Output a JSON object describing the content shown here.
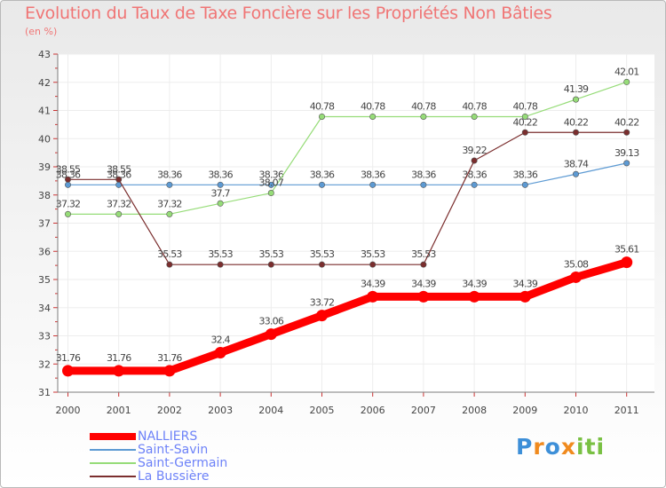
{
  "title": "Evolution du Taux de Taxe Foncière sur les Propriétés Non Bâties",
  "subtitle": "(en %)",
  "logo_text": "Proxiti",
  "colors": {
    "title": "#f07575",
    "legend_text": "#6d82f8",
    "axis": "#7c7c7c",
    "grid": "#ededed"
  },
  "chart_data": {
    "type": "line",
    "title": "Evolution du Taux de Taxe Foncière sur les Propriétés Non Bâties",
    "ylabel": "(en %)",
    "xlabel": "",
    "x": [
      "2000",
      "2001",
      "2002",
      "2003",
      "2004",
      "2005",
      "2006",
      "2007",
      "2008",
      "2009",
      "2010",
      "2011"
    ],
    "ylim": [
      31,
      43
    ],
    "yticks": [
      31,
      32,
      33,
      34,
      35,
      36,
      37,
      38,
      39,
      40,
      41,
      42,
      43
    ],
    "grid": true,
    "legend_position": "bottom-left",
    "series": [
      {
        "name": "NALLIERS",
        "color": "#ff0000",
        "values": [
          31.76,
          31.76,
          31.76,
          32.4,
          33.06,
          33.72,
          34.39,
          34.39,
          34.39,
          34.39,
          35.08,
          35.61
        ],
        "labels": [
          "31.76",
          "31.76",
          "31.76",
          "32.4",
          "33.06",
          "33.72",
          "34.39",
          "34.39",
          "34.39",
          "34.39",
          "35.08",
          "35.61"
        ]
      },
      {
        "name": "Saint-Savin",
        "color": "#5d9ad3",
        "values": [
          38.36,
          38.36,
          38.36,
          38.36,
          38.36,
          38.36,
          38.36,
          38.36,
          38.36,
          38.36,
          38.74,
          39.13
        ],
        "labels": [
          "38.36",
          "38.36",
          "38.36",
          "38.36",
          "38.36",
          "38.36",
          "38.36",
          "38.36",
          "38.36",
          "38.36",
          "38.74",
          "39.13"
        ]
      },
      {
        "name": "Saint-Germain",
        "color": "#96dc78",
        "values": [
          37.32,
          37.32,
          37.32,
          37.7,
          38.07,
          40.78,
          40.78,
          40.78,
          40.78,
          40.78,
          41.39,
          42.01
        ],
        "labels": [
          "37.32",
          "37.32",
          "37.32",
          "37.7",
          "38.07",
          "40.78",
          "40.78",
          "40.78",
          "40.78",
          "40.78",
          "41.39",
          "42.01"
        ]
      },
      {
        "name": "La Bussière",
        "color": "#7b2e2e",
        "values": [
          38.55,
          38.55,
          35.53,
          35.53,
          35.53,
          35.53,
          35.53,
          35.53,
          39.22,
          40.22,
          40.22,
          40.22
        ],
        "labels": [
          "38.55",
          "38.55",
          "35.53",
          "35.53",
          "35.53",
          "35.53",
          "35.53",
          "35.53",
          "39.22",
          "40.22",
          "40.22",
          "40.22"
        ]
      }
    ]
  }
}
